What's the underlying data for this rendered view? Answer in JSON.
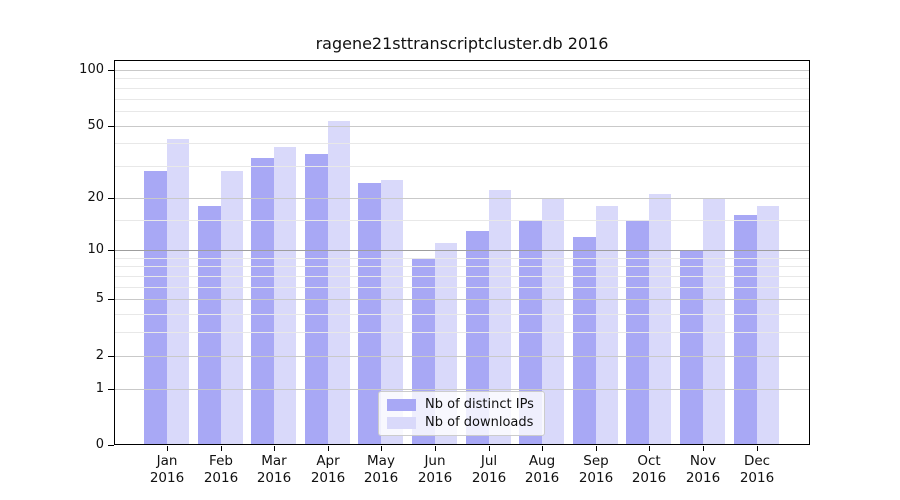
{
  "chart_data": {
    "type": "bar",
    "title": "ragene21sttranscriptcluster.db 2016",
    "categories": [
      "Jan",
      "Feb",
      "Mar",
      "Apr",
      "May",
      "Jun",
      "Jul",
      "Aug",
      "Sep",
      "Oct",
      "Nov",
      "Dec"
    ],
    "category_year": "2016",
    "series": [
      {
        "name": "Nb of distinct IPs",
        "color": "#a8a8f5",
        "values": [
          28,
          18,
          33,
          35,
          24,
          9,
          13,
          15,
          12,
          15,
          10,
          16
        ]
      },
      {
        "name": "Nb of downloads",
        "color": "#d9d9fa",
        "values": [
          42,
          28,
          38,
          53,
          25,
          11,
          22,
          20,
          18,
          21,
          20,
          18
        ]
      }
    ],
    "yscale": "log10(1+v)",
    "ylim": [
      0,
      112
    ],
    "y_major_ticks": [
      0,
      1,
      2,
      5,
      10,
      20,
      50,
      100
    ],
    "y_minor_gridlines": [
      3,
      4,
      6,
      7,
      8,
      9,
      15,
      30,
      40,
      60,
      70,
      80,
      90
    ],
    "grid": true,
    "legend_position": "bottom-center",
    "colors": {
      "bar_distinct_ips": "#a8a8f5",
      "bar_downloads": "#d9d9fa",
      "major_grid": "#c9c9c9",
      "emphasis_grid_at_10": "#9e9e9e",
      "minor_grid": "#e8e8e8",
      "axis": "#000000"
    }
  }
}
